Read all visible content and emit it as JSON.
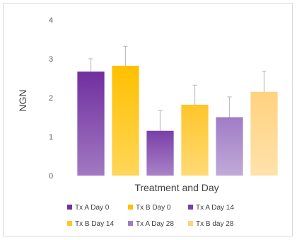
{
  "chart_data": {
    "type": "bar",
    "title": "",
    "xlabel": "Treatment and Day",
    "ylabel": "NGN",
    "ylim": [
      0,
      4
    ],
    "yticks": [
      "0",
      "1",
      "2",
      "3",
      "4"
    ],
    "grid": false,
    "legend_position": "bottom",
    "series": [
      {
        "name": "Tx A Day 0",
        "value": 2.67,
        "error": 0.33,
        "color": "#7030a0"
      },
      {
        "name": "Tx B Day 0",
        "value": 2.82,
        "error": 0.5,
        "color": "#ffc000"
      },
      {
        "name": "Tx A Day 14",
        "value": 1.15,
        "error": 0.52,
        "color": "#7a3fa8"
      },
      {
        "name": "Tx B Day 14",
        "value": 1.82,
        "error": 0.5,
        "color": "#ffc62a"
      },
      {
        "name": "Tx A Day 28",
        "value": 1.5,
        "error": 0.52,
        "color": "#a07cc5"
      },
      {
        "name": "Tx B day 28",
        "value": 2.15,
        "error": 0.53,
        "color": "#ffd27f"
      }
    ]
  }
}
